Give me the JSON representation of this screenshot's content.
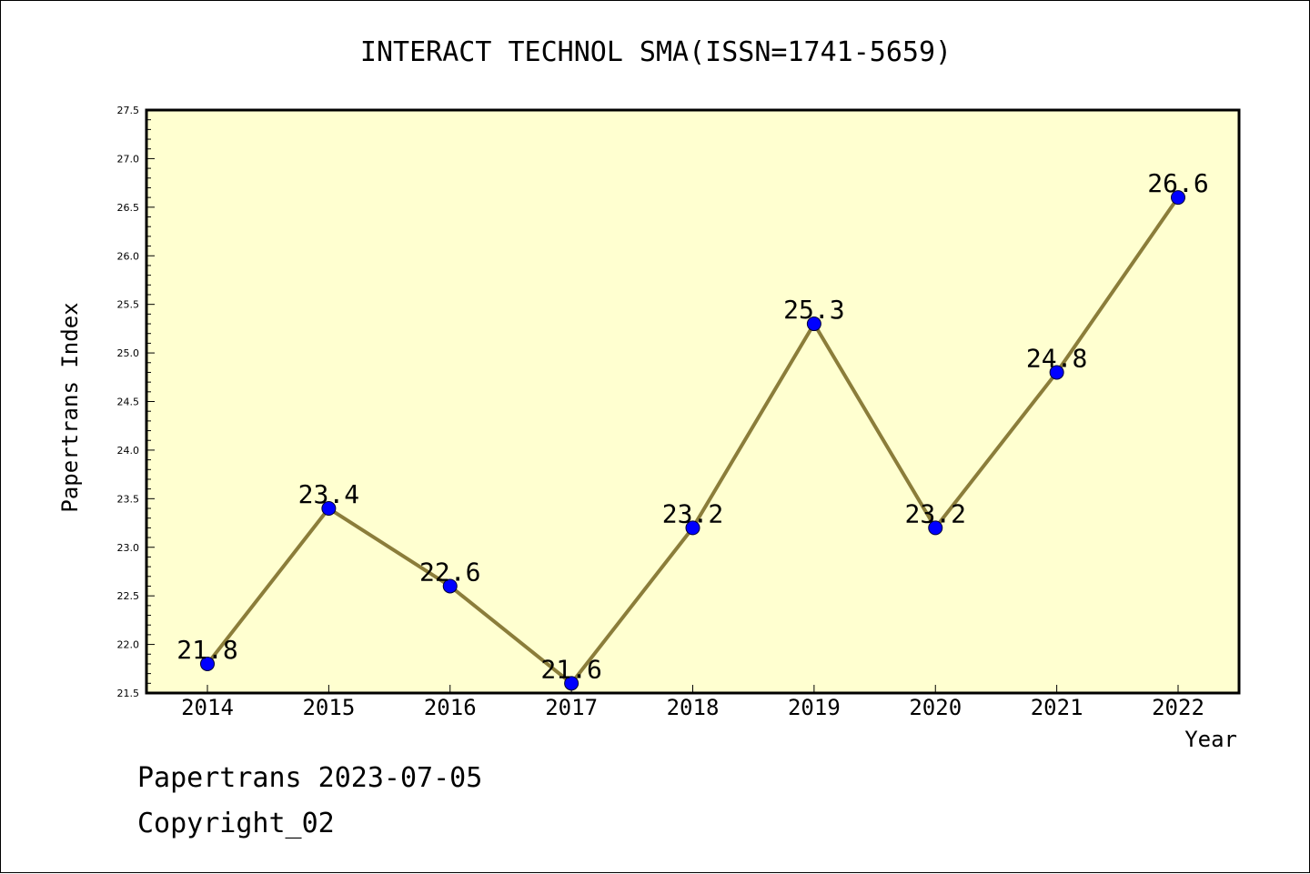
{
  "chart_data": {
    "type": "line",
    "title": "INTERACT TECHNOL SMA(ISSN=1741-5659)",
    "xlabel": "Year",
    "ylabel": "Papertrans Index",
    "categories": [
      "2014",
      "2015",
      "2016",
      "2017",
      "2018",
      "2019",
      "2020",
      "2021",
      "2022"
    ],
    "values": [
      21.8,
      23.4,
      22.6,
      21.6,
      23.2,
      25.3,
      23.2,
      24.8,
      26.6
    ],
    "data_labels": [
      "21.8",
      "23.4",
      "22.6",
      "21.6",
      "23.2",
      "25.3",
      "23.2",
      "24.8",
      "26.6"
    ],
    "ylim": [
      21.5,
      27.5
    ],
    "yticks": [
      "21.5",
      "22.0",
      "22.5",
      "23.0",
      "23.5",
      "24.0",
      "24.5",
      "25.0",
      "25.5",
      "26.0",
      "26.5",
      "27.0",
      "27.5"
    ],
    "grid": false,
    "colors": {
      "plot_background": "#ffffd0",
      "line": "#8b7d3a",
      "marker": "#0000ff"
    }
  },
  "footer": {
    "line1": "Papertrans 2023-07-05",
    "line2": "Copyright_02"
  }
}
